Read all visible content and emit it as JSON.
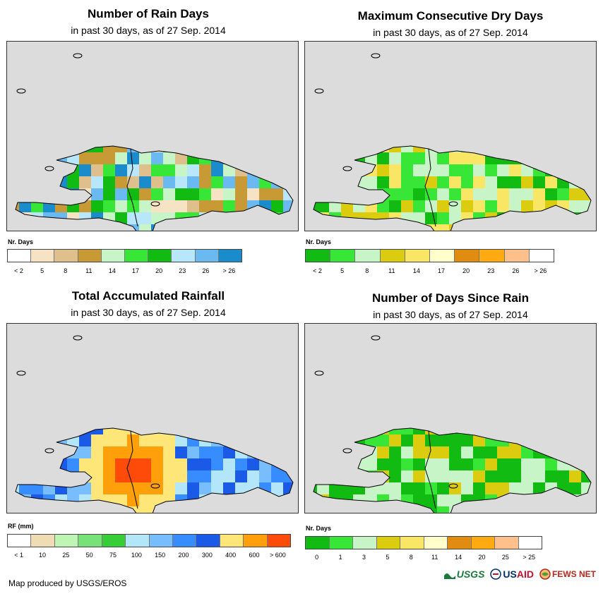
{
  "footer": {
    "credit": "Map produced by USGS/EROS"
  },
  "logos": {
    "usgs": "USGS",
    "usaid": "USAID",
    "fewsnet": "FEWS NET"
  },
  "panels": [
    {
      "title": "Number of Rain Days",
      "subtitle": "in past 30 days, as of 27 Sep. 2014",
      "legend_title": "Nr. Days",
      "legend_colors": [
        "#ffffff",
        "#f5e3c3",
        "#dfc08c",
        "#c89a35",
        "#c8f5c8",
        "#37e637",
        "#12bb12",
        "#b8e6fa",
        "#6ab9f0",
        "#1a8ccc"
      ],
      "legend_labels": [
        "< 2",
        "5",
        "8",
        "11",
        "14",
        "17",
        "20",
        "23",
        "26",
        "> 26"
      ]
    },
    {
      "title": "Maximum Consecutive Dry Days",
      "subtitle": "in past 30 days, as of 27 Sep. 2014",
      "legend_title": "Nr. Days",
      "legend_colors": [
        "#12bb12",
        "#37e637",
        "#c8f5c8",
        "#dccc10",
        "#fae665",
        "#ffffcc",
        "#e08c10",
        "#ffaa10",
        "#ffc08c",
        "#ffffff"
      ],
      "legend_labels": [
        "< 2",
        "5",
        "8",
        "11",
        "14",
        "17",
        "20",
        "23",
        "26",
        "> 26"
      ]
    },
    {
      "title": "Total Accumulated Rainfall",
      "subtitle": "in past 30 days, as of 27 Sep. 2014",
      "legend_title": "RF (mm)",
      "legend_colors": [
        "#ffffff",
        "#f0dcb4",
        "#bef5b4",
        "#78e178",
        "#37cd37",
        "#b4e6fa",
        "#78beff",
        "#378cff",
        "#1a5ae6",
        "#ffe678",
        "#ffa00a",
        "#ff4b0a"
      ],
      "legend_labels": [
        "< 1",
        "10",
        "25",
        "50",
        "75",
        "100",
        "150",
        "200",
        "300",
        "400",
        "600",
        "> 600"
      ]
    },
    {
      "title": "Number of Days Since Rain",
      "subtitle": "in past 30 days, as of 27 Sep. 2014",
      "legend_title": "Nr. Days",
      "legend_colors": [
        "#12bb12",
        "#37e637",
        "#c8f5c8",
        "#dccc10",
        "#fae665",
        "#ffffcc",
        "#e08c10",
        "#ffaa10",
        "#ffc08c",
        "#ffffff"
      ],
      "legend_labels": [
        "0",
        "1",
        "3",
        "5",
        "8",
        "11",
        "14",
        "20",
        "25",
        "> 25"
      ]
    }
  ]
}
